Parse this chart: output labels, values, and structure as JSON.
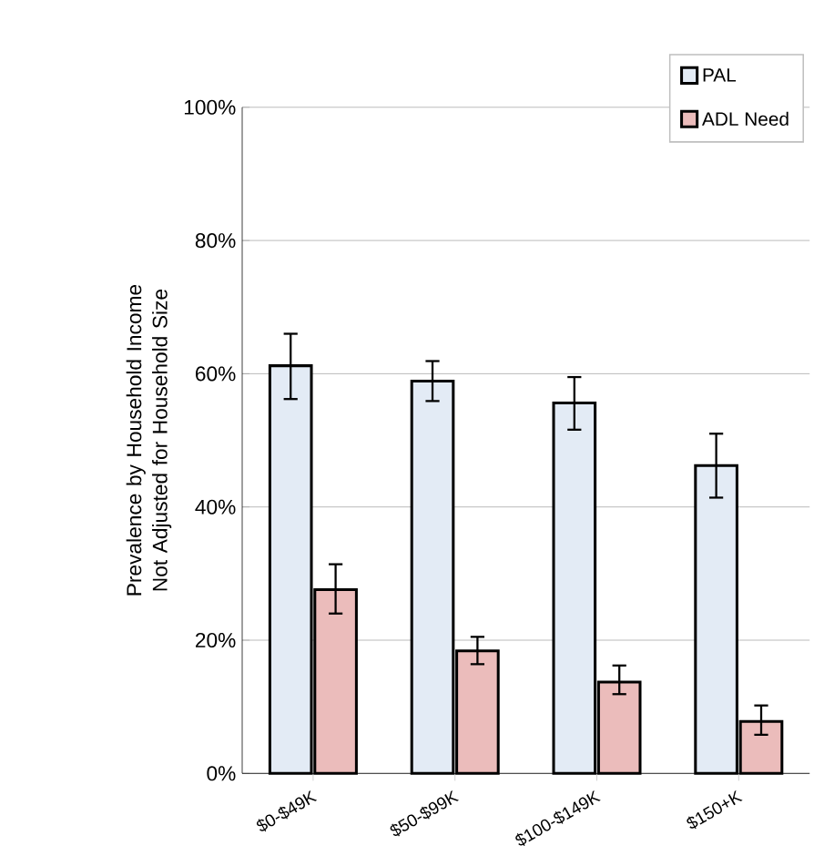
{
  "chart_data": {
    "type": "bar",
    "ylabel": "Prevalence by Household Income Not Adjusted for Household Size",
    "categories": [
      "$0-$49K",
      "$50-$99K",
      "$100-$149K",
      "$150+K"
    ],
    "series": [
      {
        "name": "PAL",
        "color": "#e3ebf5",
        "values": [
          61.2,
          58.9,
          55.6,
          46.2
        ],
        "errors": [
          [
            56.2,
            66.0
          ],
          [
            55.9,
            61.9
          ],
          [
            51.6,
            59.5
          ],
          [
            41.4,
            51.0
          ]
        ]
      },
      {
        "name": "ADL Need",
        "color": "#ebbcbb",
        "values": [
          27.6,
          18.4,
          13.7,
          7.8
        ],
        "errors": [
          [
            24.0,
            31.4
          ],
          [
            16.4,
            20.5
          ],
          [
            11.9,
            16.2
          ],
          [
            5.8,
            10.2
          ]
        ]
      }
    ],
    "ylim": [
      0,
      100
    ],
    "yticks": [
      {
        "value": 0,
        "label": "0%"
      },
      {
        "value": 20,
        "label": "20%"
      },
      {
        "value": 40,
        "label": "40%"
      },
      {
        "value": 60,
        "label": "60%"
      },
      {
        "value": 80,
        "label": "80%"
      },
      {
        "value": 100,
        "label": "100%"
      }
    ],
    "grid": "y",
    "legend": "top right"
  }
}
